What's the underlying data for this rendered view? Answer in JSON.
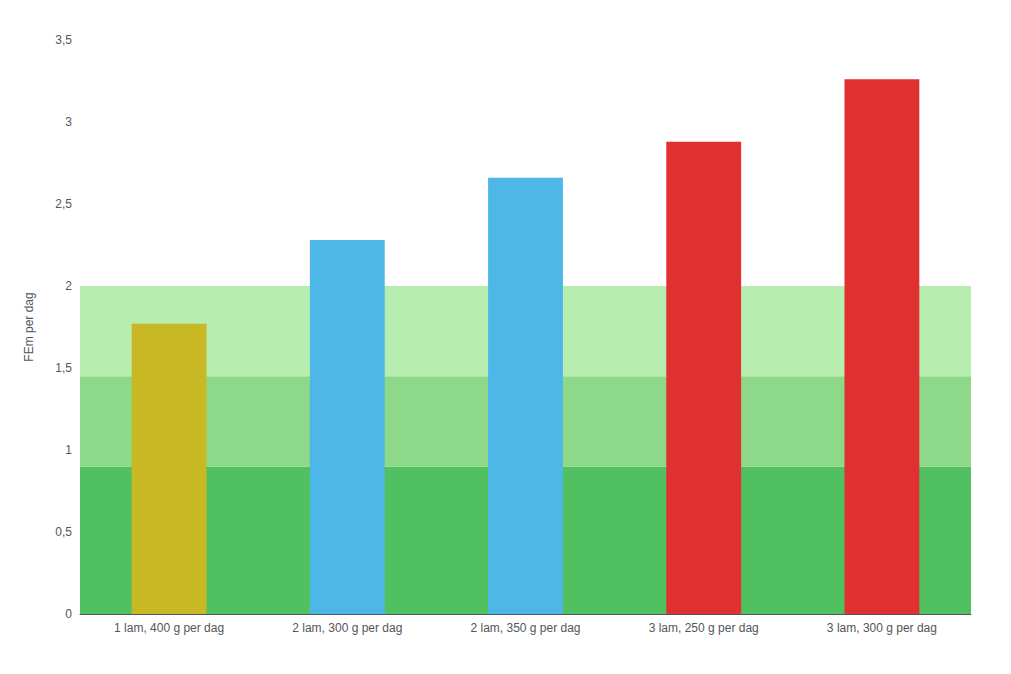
{
  "chart_data": {
    "type": "bar",
    "categories": [
      "1 lam, 400 g per dag",
      "2 lam, 300 g per dag",
      "2 lam, 350 g per dag",
      "3 lam, 250 g per dag",
      "3 lam, 300 g per dag"
    ],
    "values": [
      1.77,
      2.28,
      2.66,
      2.88,
      3.26
    ],
    "colors": [
      "#c8b824",
      "#4db8e8",
      "#4db8e8",
      "#e03030",
      "#e03030"
    ],
    "ylabel": "FEm per dag",
    "ylim": [
      0,
      3.5
    ],
    "yticks": [
      0,
      {
        "value": 0.5,
        "label": "0,5"
      },
      1,
      {
        "value": 1.5,
        "label": "1,5"
      },
      2,
      {
        "value": 2.5,
        "label": "2,5"
      },
      3,
      {
        "value": 3.5,
        "label": "3,5"
      }
    ],
    "bands": [
      {
        "ymin": 0,
        "ymax": 0.9,
        "color": "#50c060"
      },
      {
        "ymin": 0.9,
        "ymax": 1.45,
        "color": "#8ed88a"
      },
      {
        "ymin": 1.45,
        "ymax": 2.0,
        "color": "#b8edb0"
      },
      {
        "ymin": 2.0,
        "ymax": 3.5,
        "color": "#ffffff"
      }
    ],
    "grid": true
  }
}
